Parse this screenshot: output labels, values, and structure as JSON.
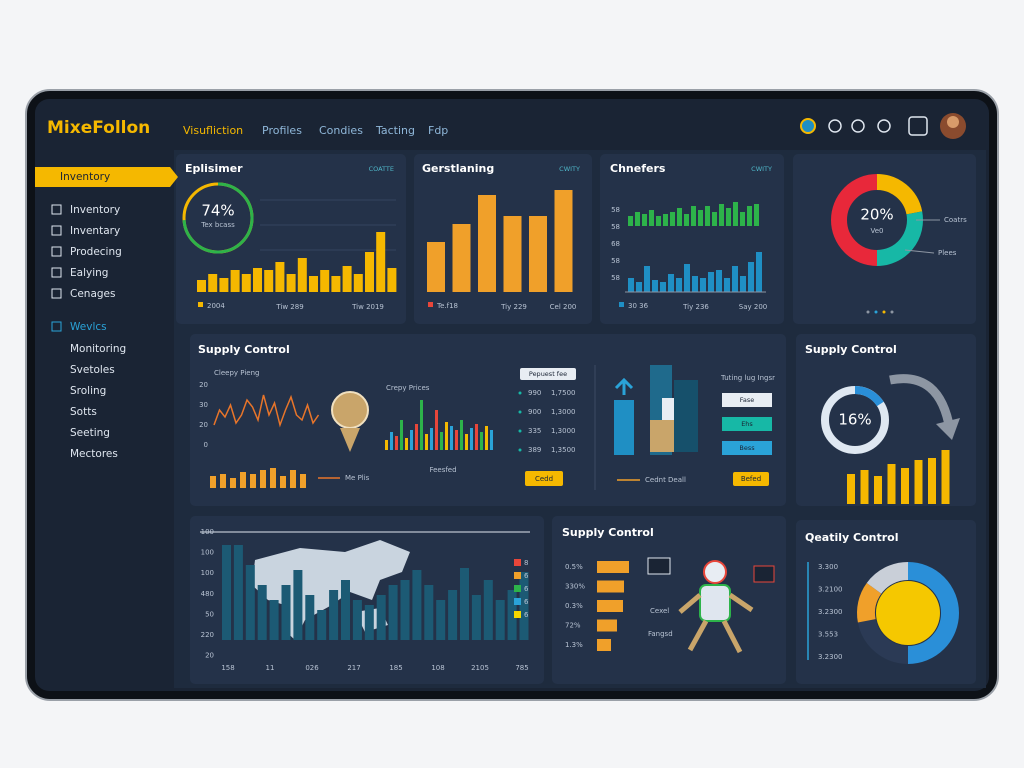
{
  "header": {
    "logo": "MixeFollon",
    "nav": [
      "Visufliction",
      "Profiles",
      "Condies",
      "Tacting",
      "Fdp"
    ]
  },
  "sidebar": {
    "selected": "Inventory",
    "items": [
      "Inventory",
      "Inventary",
      "Prodecing",
      "Ealying",
      "Cenages"
    ],
    "section": "Wevlcs",
    "section_items": [
      "Monitoring",
      "Svetoles",
      "Sroling",
      "Sotts",
      "Seeting",
      "Mectores"
    ]
  },
  "panels": {
    "eplisimer": {
      "title": "Eplisimer",
      "tag": "COATTE",
      "ring": {
        "value": 74,
        "label": "74%"
      },
      "ring_caption": "Tex bcass",
      "color": "#f5b800",
      "values": [
        12,
        18,
        14,
        22,
        18,
        24,
        22,
        30,
        18,
        34,
        16,
        22,
        16,
        26,
        18,
        40,
        60,
        24
      ],
      "legend": "2004",
      "x_labels": [
        "Tiw 289",
        "Tiw 2019"
      ]
    },
    "gerstlaning": {
      "title": "Gerstlaning",
      "tag": "CWITY",
      "color": "#f0a02a",
      "values": [
        50,
        68,
        97,
        76,
        76,
        102
      ],
      "legend": "Te.f18",
      "x_labels": [
        "Tiy 229",
        "Cel 200"
      ]
    },
    "chnefers": {
      "title": "Chnefers",
      "tag": "CWITY",
      "y_labels": [
        "58",
        "58",
        "68",
        "58",
        "58"
      ],
      "series": [
        {
          "color": "#2db34a",
          "values": [
            10,
            14,
            12,
            16,
            10,
            12,
            14,
            18,
            12,
            20,
            16,
            20,
            14,
            22,
            18,
            24,
            14,
            20,
            22
          ]
        },
        {
          "color": "#1f8fc4",
          "values": [
            14,
            10,
            26,
            12,
            10,
            18,
            14,
            28,
            16,
            14,
            20,
            22,
            14,
            26,
            16,
            30,
            40
          ]
        }
      ],
      "legend": "30 36",
      "x_labels": [
        "Tiy 236",
        "Say 200"
      ]
    },
    "donut": {
      "center": {
        "value": 20,
        "label": "20%"
      },
      "caption": "Ve0",
      "segments": [
        {
          "color": "#f5b800",
          "value": 22
        },
        {
          "color": "#17b8a6",
          "value": 28
        },
        {
          "color": "#e8283a",
          "value": 50
        }
      ],
      "labels": [
        "Coatrs",
        "Plees"
      ]
    },
    "supply_main": {
      "title": "Supply Control",
      "line": {
        "caption": "Cleepy Pieng",
        "y_labels": [
          "20",
          "30",
          "20",
          "0"
        ],
        "color": "#e8752a",
        "values": [
          20,
          35,
          28,
          40,
          22,
          30,
          45,
          38,
          25,
          50,
          30,
          42,
          20,
          35,
          48,
          30,
          25,
          40,
          22,
          30
        ]
      },
      "bars": {
        "color": "#f0a02a",
        "values": [
          12,
          14,
          10,
          16,
          14,
          18,
          20,
          12,
          18,
          14
        ]
      },
      "legend": "Me Plis",
      "mini": {
        "caption": "Crepy Prices",
        "colors": [
          "#f5b800",
          "#2aa3d8",
          "#e8463a",
          "#2db34a"
        ],
        "values": [
          10,
          18,
          14,
          30,
          12,
          20,
          26,
          50,
          16,
          22,
          40,
          18,
          28,
          24,
          20,
          30,
          16,
          22,
          26,
          18,
          24,
          20
        ]
      },
      "mini_label": "Feesfed",
      "list": {
        "header": "Pepuest fee",
        "rows": [
          [
            "990",
            "1,7500"
          ],
          [
            "900",
            "1,3000"
          ],
          [
            "335",
            "1,3000"
          ],
          [
            "389",
            "1,3500"
          ]
        ]
      },
      "button": "Cedd",
      "chips_caption": "Tuting lug Ingsr",
      "chips": [
        "Fase",
        "Ehs",
        "Bess"
      ],
      "footer": "Cednt Deall",
      "button2": "Befed"
    },
    "supply_ring": {
      "title": "Supply Control",
      "ring": {
        "value": 16,
        "label": "16%"
      },
      "color": "#f5b800",
      "values": [
        30,
        34,
        28,
        40,
        36,
        44,
        46,
        54
      ]
    },
    "map": {
      "y_labels": [
        "100",
        "100",
        "100",
        "480",
        "50",
        "220",
        "20"
      ],
      "x_labels": [
        "158",
        "11",
        "026",
        "217",
        "185",
        "108",
        "2105",
        "785"
      ],
      "color": "#1c5a74",
      "values": [
        95,
        95,
        75,
        55,
        40,
        55,
        70,
        45,
        30,
        50,
        60,
        40,
        35,
        45,
        55,
        60,
        70,
        55,
        40,
        50,
        72,
        45,
        60,
        40,
        50,
        68
      ],
      "legend": [
        {
          "color": "#e8463a",
          "label": "8"
        },
        {
          "color": "#f0a02a",
          "label": "6"
        },
        {
          "color": "#2db34a",
          "label": "6"
        },
        {
          "color": "#2aa3d8",
          "label": "6"
        },
        {
          "color": "#f5d800",
          "label": "6"
        }
      ]
    },
    "supply_hbar": {
      "title": "Supply Control",
      "labels": [
        "0.5%",
        "330%",
        "0.3%",
        "72%",
        "1.3%"
      ],
      "color": "#f0a02a",
      "values": [
        32,
        27,
        26,
        20,
        14
      ],
      "captions": [
        "Cexel",
        "Fangsd"
      ]
    },
    "quality": {
      "title": "Qeatily Control",
      "labels": [
        "3.300",
        "3.2100",
        "3.2300",
        "3.553",
        "3.2300"
      ],
      "segments": [
        {
          "color": "#2a8fd8",
          "value": 50
        },
        {
          "color": "#2b3a55",
          "value": 22
        },
        {
          "color": "#f0a02a",
          "value": 13
        },
        {
          "color": "#c9cfd8",
          "value": 15
        }
      ]
    }
  }
}
